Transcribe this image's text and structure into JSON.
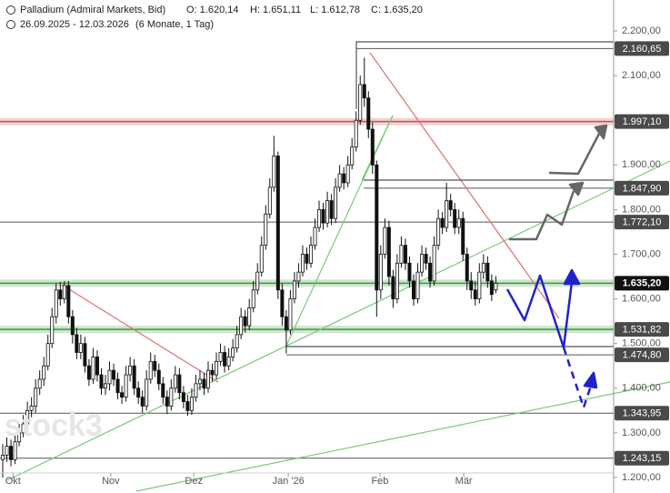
{
  "chart_data": {
    "type": "candlestick",
    "title": "Palladium (Admiral Markets, Bid)",
    "ohlc_labels": [
      "O: 1.620,14",
      "H: 1.651,11",
      "L: 1.612,78",
      "C: 1.635,20"
    ],
    "date_range": "26.09.2025 - 12.03.2026",
    "period": "(6 Monate, 1 Tag)",
    "watermark": "stock3",
    "up_color": "#ffffff",
    "down_color": "#111111",
    "wick_color": "#111111",
    "xlim": [
      0,
      124
    ],
    "xticks": [
      {
        "value": 2.5,
        "label": "Okt"
      },
      {
        "value": 26.3,
        "label": "Nov"
      },
      {
        "value": 46.5,
        "label": "Dez"
      },
      {
        "value": 69.5,
        "label": "Jan '26"
      },
      {
        "value": 91.8,
        "label": "Feb"
      },
      {
        "value": 112.2,
        "label": "Mär"
      }
    ],
    "ylim": [
      1180,
      2240
    ],
    "yticks": [
      {
        "value": 1200,
        "label": "1.200,00"
      },
      {
        "value": 1300,
        "label": "1.300,00"
      },
      {
        "value": 1400,
        "label": "1.400,00"
      },
      {
        "value": 1500,
        "label": "1.500,00"
      },
      {
        "value": 1600,
        "label": "1.600,00"
      },
      {
        "value": 1700,
        "label": "1.700,00"
      },
      {
        "value": 1800,
        "label": "1.800,00"
      },
      {
        "value": 1900,
        "label": "1.900,00"
      },
      {
        "value": 2000,
        "label": "2.000,00"
      },
      {
        "value": 2100,
        "label": "2.100,00"
      },
      {
        "value": 2200,
        "label": "2.200,00"
      }
    ],
    "levels": [
      {
        "value": 2160.65,
        "label": "2.160,65",
        "style": "line",
        "color": "#555555"
      },
      {
        "value": 1997.1,
        "label": "1.997,10",
        "style": "band",
        "color": "#d24a4a"
      },
      {
        "value": 1847.9,
        "label": "1.847,90",
        "style": "line",
        "color": "#555555"
      },
      {
        "value": 1772.1,
        "label": "1.772,10",
        "style": "line",
        "color": "#555555"
      },
      {
        "value": 1635.2,
        "label": "1.635,20",
        "style": "band",
        "color": "#3c9a3c"
      },
      {
        "value": 1531.82,
        "label": "1.531,82",
        "style": "band",
        "color": "#3c9a3c"
      },
      {
        "value": 1474.8,
        "label": "1.474,80",
        "style": "line",
        "color": "#555555"
      },
      {
        "value": 1343.95,
        "label": "1.343,95",
        "style": "line",
        "color": "#555555"
      },
      {
        "value": 1243.15,
        "label": "1.243,15",
        "style": "line",
        "color": "#555555"
      }
    ],
    "open": [
      1240,
      1250,
      1270,
      1240,
      1280,
      1300,
      1320,
      1350,
      1360,
      1400,
      1420,
      1450,
      1500,
      1560,
      1620,
      1600,
      1630,
      1560,
      1520,
      1480,
      1500,
      1450,
      1420,
      1470,
      1430,
      1400,
      1410,
      1440,
      1420,
      1390,
      1380,
      1430,
      1450,
      1400,
      1380,
      1360,
      1420,
      1460,
      1440,
      1410,
      1380,
      1360,
      1400,
      1430,
      1390,
      1370,
      1350,
      1380,
      1410,
      1420,
      1400,
      1440,
      1430,
      1460,
      1480,
      1450,
      1470,
      1490,
      1520,
      1560,
      1540,
      1580,
      1620,
      1660,
      1720,
      1790,
      1850,
      1920,
      1620,
      1560,
      1530,
      1600,
      1640,
      1660,
      1700,
      1680,
      1720,
      1760,
      1800,
      1770,
      1820,
      1780,
      1850,
      1880,
      1860,
      1900,
      1940,
      2000,
      2080,
      2050,
      1980,
      1900,
      1620,
      1700,
      1760,
      1650,
      1600,
      1680,
      1720,
      1680,
      1640,
      1600,
      1660,
      1700,
      1680,
      1640,
      1720,
      1780,
      1760,
      1820,
      1800,
      1760,
      1780,
      1700,
      1640,
      1620,
      1600,
      1660,
      1680,
      1640,
      1620.14
    ],
    "high": [
      1275,
      1290,
      1285,
      1295,
      1320,
      1340,
      1370,
      1380,
      1420,
      1440,
      1470,
      1520,
      1580,
      1635,
      1638,
      1640,
      1640,
      1575,
      1535,
      1520,
      1515,
      1465,
      1490,
      1485,
      1445,
      1430,
      1460,
      1455,
      1435,
      1405,
      1450,
      1470,
      1465,
      1415,
      1395,
      1440,
      1480,
      1475,
      1455,
      1425,
      1395,
      1420,
      1450,
      1445,
      1405,
      1385,
      1400,
      1430,
      1440,
      1435,
      1460,
      1455,
      1480,
      1500,
      1495,
      1490,
      1510,
      1540,
      1580,
      1575,
      1600,
      1640,
      1680,
      1740,
      1810,
      1870,
      1965,
      1930,
      1635,
      1575,
      1620,
      1660,
      1680,
      1720,
      1715,
      1740,
      1780,
      1820,
      1815,
      1840,
      1835,
      1870,
      1900,
      1895,
      1920,
      1960,
      2020,
      2100,
      2140,
      2065,
      1995,
      1910,
      1720,
      1780,
      1775,
      1665,
      1700,
      1740,
      1735,
      1695,
      1655,
      1680,
      1720,
      1715,
      1695,
      1740,
      1800,
      1795,
      1860,
      1835,
      1815,
      1800,
      1795,
      1715,
      1660,
      1640,
      1680,
      1700,
      1695,
      1655,
      1651.11
    ],
    "low": [
      1200,
      1235,
      1225,
      1230,
      1270,
      1290,
      1310,
      1335,
      1345,
      1385,
      1405,
      1440,
      1490,
      1545,
      1585,
      1590,
      1545,
      1500,
      1465,
      1465,
      1435,
      1405,
      1410,
      1415,
      1385,
      1385,
      1395,
      1405,
      1375,
      1365,
      1370,
      1415,
      1385,
      1365,
      1345,
      1350,
      1410,
      1425,
      1395,
      1365,
      1342,
      1350,
      1390,
      1375,
      1355,
      1338,
      1340,
      1370,
      1395,
      1385,
      1390,
      1415,
      1420,
      1450,
      1435,
      1440,
      1460,
      1480,
      1510,
      1525,
      1530,
      1570,
      1610,
      1650,
      1710,
      1780,
      1840,
      1600,
      1540,
      1478,
      1520,
      1590,
      1625,
      1650,
      1665,
      1670,
      1710,
      1750,
      1755,
      1760,
      1765,
      1770,
      1840,
      1845,
      1850,
      1890,
      1930,
      1990,
      2030,
      1960,
      1880,
      1560,
      1600,
      1690,
      1630,
      1580,
      1590,
      1670,
      1665,
      1625,
      1585,
      1590,
      1650,
      1665,
      1625,
      1630,
      1710,
      1745,
      1750,
      1785,
      1745,
      1745,
      1685,
      1620,
      1600,
      1585,
      1590,
      1645,
      1625,
      1595,
      1612.78
    ],
    "close": [
      1250,
      1270,
      1240,
      1280,
      1300,
      1320,
      1350,
      1360,
      1400,
      1420,
      1450,
      1500,
      1560,
      1620,
      1600,
      1630,
      1560,
      1520,
      1480,
      1500,
      1450,
      1420,
      1470,
      1430,
      1400,
      1410,
      1440,
      1420,
      1390,
      1380,
      1430,
      1450,
      1400,
      1380,
      1360,
      1420,
      1460,
      1440,
      1410,
      1380,
      1360,
      1400,
      1430,
      1390,
      1370,
      1350,
      1380,
      1410,
      1420,
      1400,
      1440,
      1430,
      1460,
      1480,
      1450,
      1470,
      1490,
      1520,
      1560,
      1540,
      1580,
      1620,
      1660,
      1720,
      1790,
      1850,
      1920,
      1620,
      1560,
      1530,
      1600,
      1640,
      1660,
      1700,
      1680,
      1720,
      1760,
      1800,
      1770,
      1820,
      1780,
      1850,
      1880,
      1860,
      1900,
      1940,
      2000,
      2080,
      2050,
      1980,
      1900,
      1620,
      1700,
      1760,
      1650,
      1600,
      1680,
      1720,
      1680,
      1640,
      1600,
      1660,
      1700,
      1680,
      1640,
      1720,
      1780,
      1760,
      1820,
      1800,
      1760,
      1780,
      1700,
      1640,
      1620,
      1600,
      1660,
      1680,
      1640,
      1610,
      1635.2
    ]
  }
}
